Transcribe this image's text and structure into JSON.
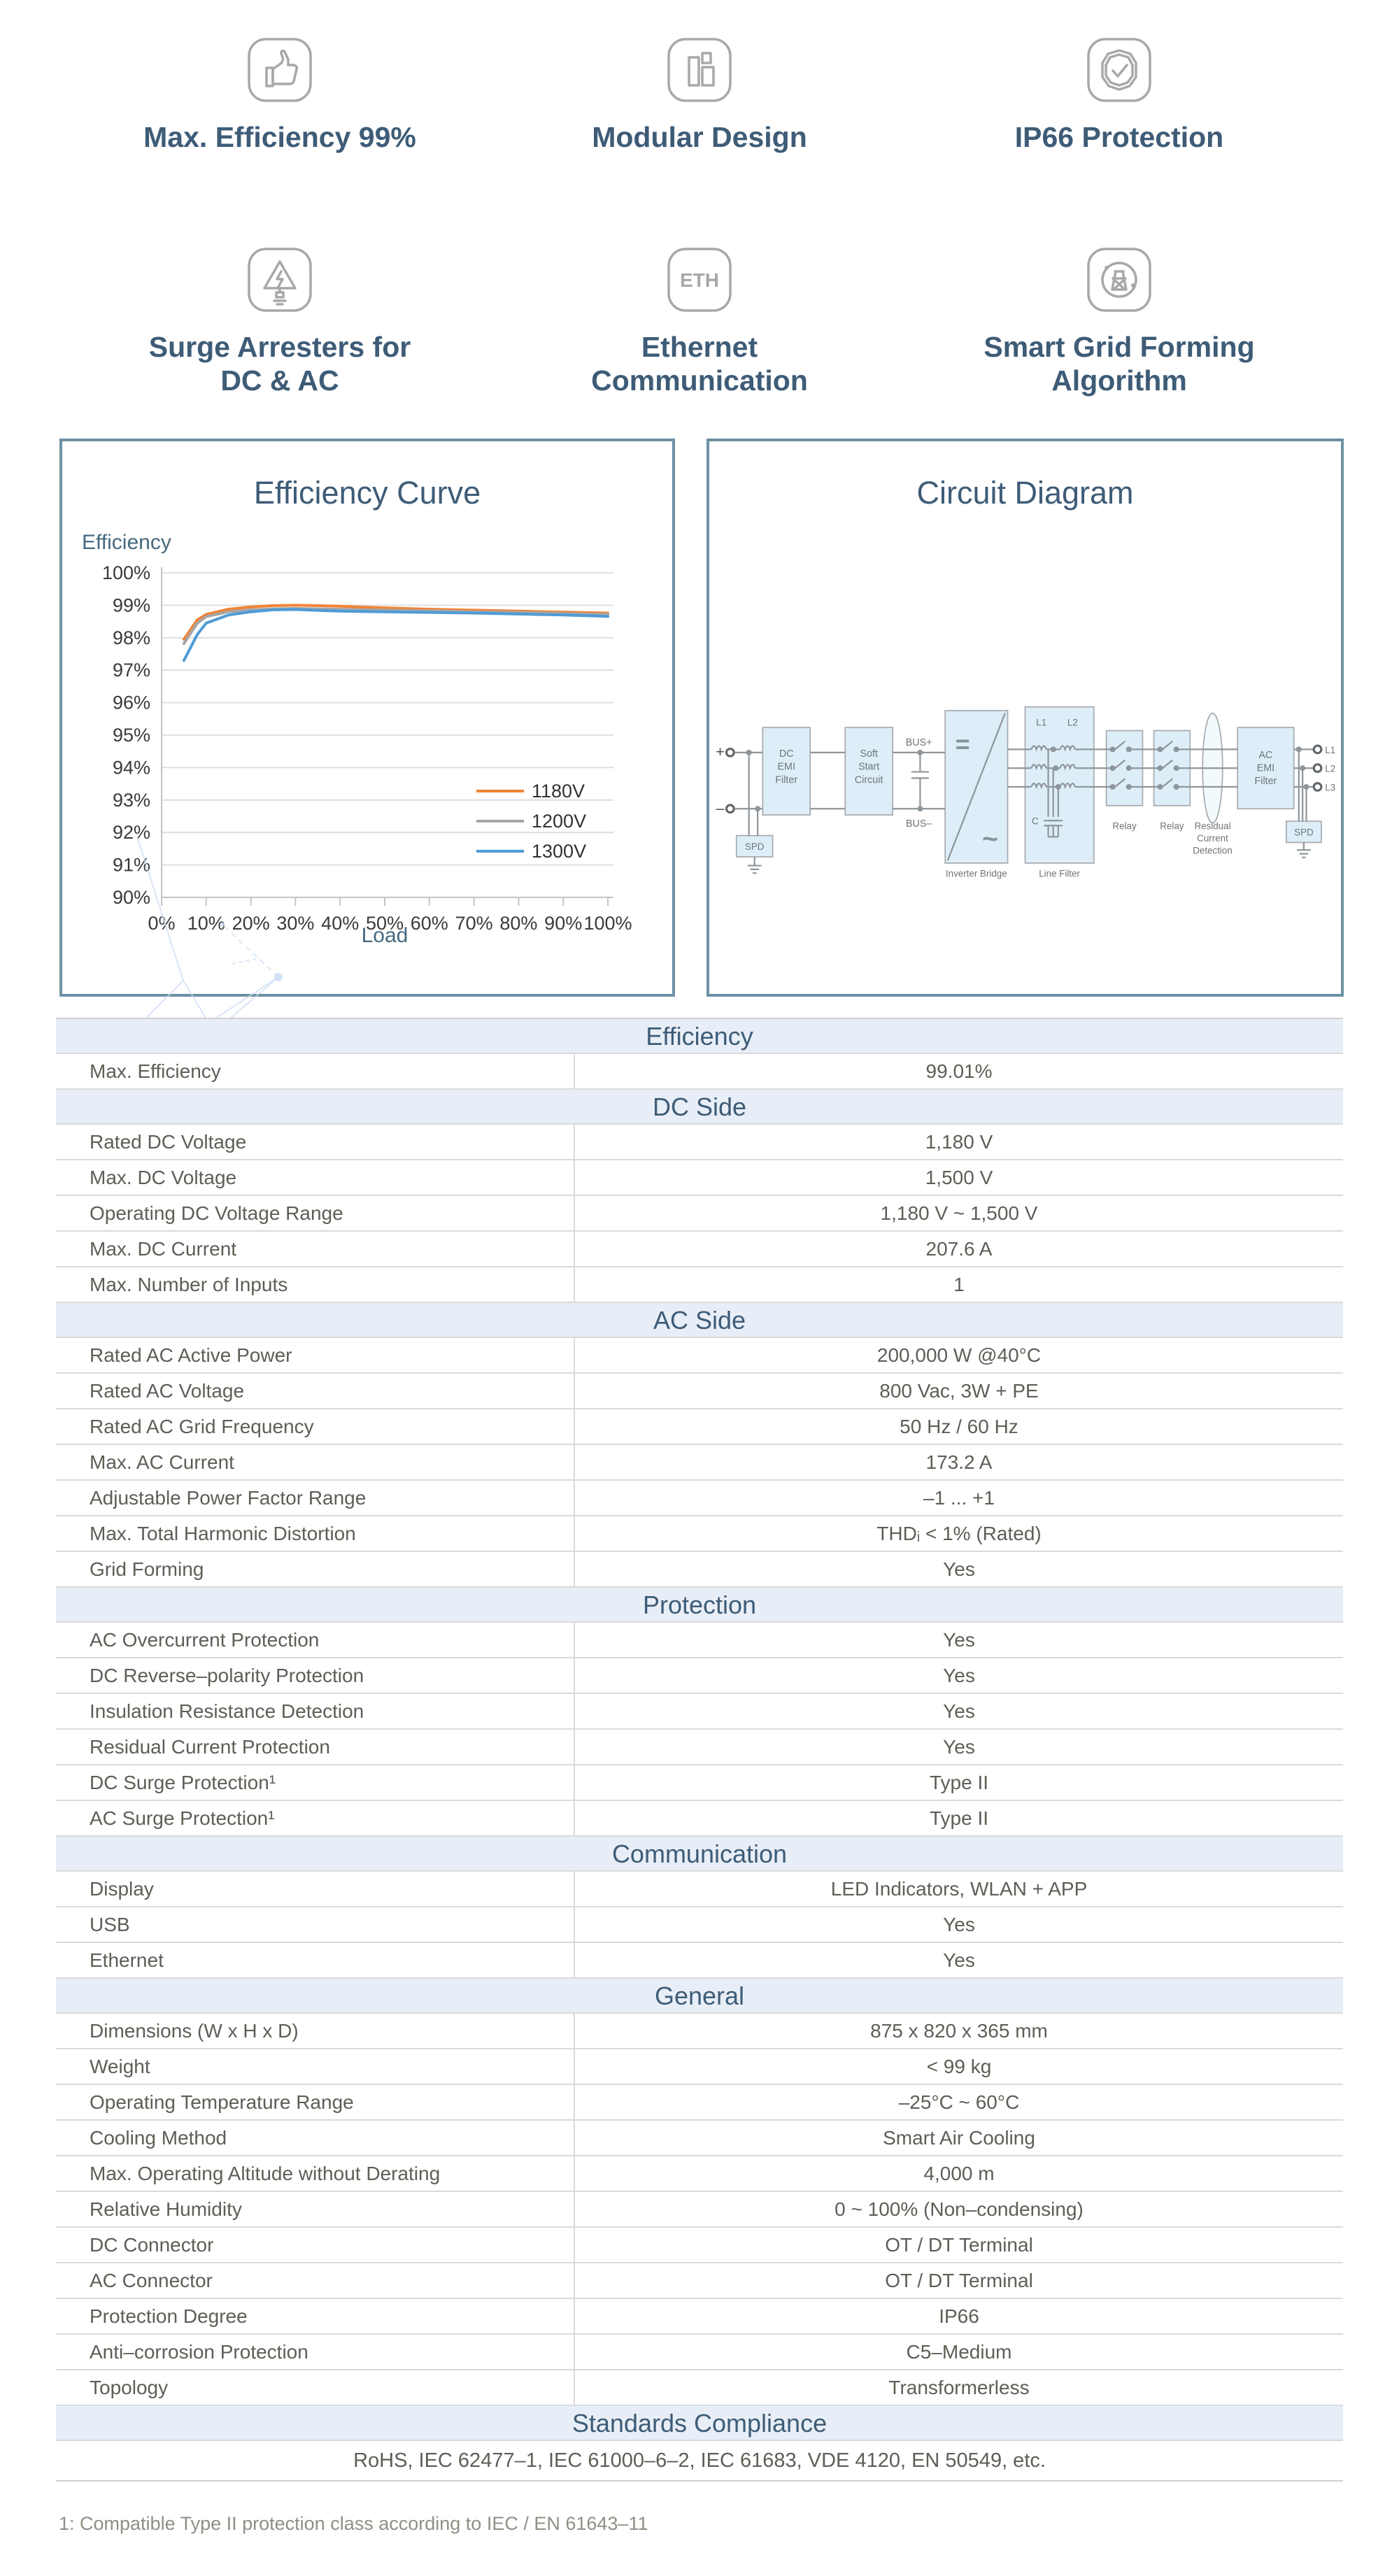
{
  "features": [
    {
      "label": "Max. Efficiency 99%",
      "icon": "thumbs-up-icon"
    },
    {
      "label": "Modular Design",
      "icon": "modules-icon"
    },
    {
      "label": "IP66 Protection",
      "icon": "shield-check-icon"
    },
    {
      "label": "Surge Arresters for\nDC & AC",
      "icon": "surge-arrester-icon"
    },
    {
      "label": "Ethernet\nCommunication",
      "icon": "ethernet-icon",
      "icon_text": "ETH"
    },
    {
      "label": "Smart Grid Forming\nAlgorithm",
      "icon": "grid-forming-icon"
    }
  ],
  "efficiency_panel": {
    "title": "Efficiency Curve",
    "y_axis_title": "Efficiency",
    "x_axis_title": "Load"
  },
  "chart_data": {
    "type": "line",
    "title": "Efficiency Curve",
    "xlabel": "Load",
    "ylabel": "Efficiency",
    "xlim": [
      0,
      100
    ],
    "ylim": [
      90,
      100
    ],
    "xtick_step": 10,
    "ytick_step": 1,
    "x_tick_suffix": "%",
    "y_tick_suffix": "%",
    "grid": "horizontal",
    "legend_position": "right-middle",
    "x": [
      5,
      8,
      10,
      15,
      20,
      25,
      30,
      35,
      40,
      50,
      60,
      70,
      80,
      90,
      100
    ],
    "series": [
      {
        "name": "1180V",
        "color": "#f08436",
        "values": [
          97.95,
          98.55,
          98.72,
          98.88,
          98.95,
          98.99,
          99.0,
          98.99,
          98.97,
          98.92,
          98.88,
          98.85,
          98.82,
          98.79,
          98.76
        ]
      },
      {
        "name": "1200V",
        "color": "#a6a6a6",
        "values": [
          97.82,
          98.45,
          98.65,
          98.8,
          98.86,
          98.89,
          98.9,
          98.89,
          98.88,
          98.85,
          98.83,
          98.8,
          98.78,
          98.75,
          98.72
        ]
      },
      {
        "name": "1300V",
        "color": "#4f9bd6",
        "values": [
          97.3,
          98.1,
          98.45,
          98.7,
          98.8,
          98.86,
          98.87,
          98.84,
          98.82,
          98.8,
          98.78,
          98.76,
          98.73,
          98.7,
          98.66
        ]
      }
    ]
  },
  "circuit_panel": {
    "title": "Circuit Diagram",
    "labels": {
      "plus": "+",
      "minus": "–",
      "spd_dc": "SPD",
      "dc_emi": "DC\nEMI\nFilter",
      "soft_start": "Soft\nStart\nCircuit",
      "bus_plus": "BUS+",
      "bus_minus": "BUS–",
      "eq": "=",
      "tilde": "~",
      "inverter": "Inverter Bridge",
      "l1": "L1",
      "l2": "L2",
      "c": "C",
      "line_filter": "Line Filter",
      "relay1": "Relay",
      "relay2": "Relay",
      "rcd": "Residual\nCurrent\nDetection",
      "ac_emi": "AC\nEMI\nFilter",
      "spd_ac": "SPD",
      "out1": "L1",
      "out2": "L2",
      "out3": "L3"
    }
  },
  "table": {
    "sections": [
      {
        "header": "Efficiency",
        "rows": [
          {
            "label": "Max. Efficiency",
            "value": "99.01%"
          }
        ]
      },
      {
        "header": "DC Side",
        "rows": [
          {
            "label": "Rated DC Voltage",
            "value": "1,180 V"
          },
          {
            "label": "Max. DC Voltage",
            "value": "1,500 V"
          },
          {
            "label": "Operating DC Voltage Range",
            "value": "1,180 V ~ 1,500 V"
          },
          {
            "label": "Max. DC Current",
            "value": "207.6 A"
          },
          {
            "label": "Max. Number of Inputs",
            "value": "1"
          }
        ]
      },
      {
        "header": "AC Side",
        "rows": [
          {
            "label": "Rated AC Active Power",
            "value": "200,000 W @40°C"
          },
          {
            "label": "Rated AC Voltage",
            "value": "800 Vac, 3W + PE"
          },
          {
            "label": "Rated AC Grid Frequency",
            "value": "50 Hz / 60 Hz"
          },
          {
            "label": "Max. AC Current",
            "value": "173.2 A"
          },
          {
            "label": "Adjustable Power Factor Range",
            "value": "–1 ... +1"
          },
          {
            "label": "Max. Total Harmonic Distortion",
            "value": "THDᵢ < 1% (Rated)"
          },
          {
            "label": "Grid Forming",
            "value": "Yes"
          }
        ]
      },
      {
        "header": "Protection",
        "rows": [
          {
            "label": "AC Overcurrent Protection",
            "value": "Yes"
          },
          {
            "label": "DC Reverse–polarity Protection",
            "value": "Yes"
          },
          {
            "label": "Insulation Resistance Detection",
            "value": "Yes"
          },
          {
            "label": "Residual Current Protection",
            "value": "Yes"
          },
          {
            "label": "DC Surge Protection¹",
            "value": "Type II"
          },
          {
            "label": "AC Surge Protection¹",
            "value": "Type II"
          }
        ]
      },
      {
        "header": "Communication",
        "rows": [
          {
            "label": "Display",
            "value": "LED Indicators, WLAN + APP"
          },
          {
            "label": "USB",
            "value": "Yes"
          },
          {
            "label": "Ethernet",
            "value": "Yes"
          }
        ]
      },
      {
        "header": "General",
        "rows": [
          {
            "label": "Dimensions (W x H x D)",
            "value": "875 x 820 x 365 mm"
          },
          {
            "label": "Weight",
            "value": "< 99 kg"
          },
          {
            "label": "Operating Temperature Range",
            "value": "–25°C ~ 60°C"
          },
          {
            "label": "Cooling Method",
            "value": "Smart Air Cooling"
          },
          {
            "label": "Max. Operating Altitude without Derating",
            "value": "4,000 m"
          },
          {
            "label": "Relative Humidity",
            "value": "0 ~ 100% (Non–condensing)"
          },
          {
            "label": "DC Connector",
            "value": "OT / DT Terminal"
          },
          {
            "label": "AC Connector",
            "value": "OT / DT Terminal"
          },
          {
            "label": "Protection Degree",
            "value": "IP66"
          },
          {
            "label": "Anti–corrosion Protection",
            "value": "C5–Medium"
          },
          {
            "label": "Topology",
            "value": "Transformerless"
          }
        ]
      },
      {
        "header": "Standards Compliance",
        "rows": [
          {
            "full": true,
            "value": "RoHS, IEC 62477–1, IEC 61000–6–2, IEC 61683, VDE 4120, EN 50549, etc."
          }
        ]
      }
    ]
  },
  "footnote": "1: Compatible Type II protection class according to IEC / EN 61643–11",
  "colors": {
    "accent_text": "#3e5c77",
    "section_header_bg": "#e8eef7",
    "panel_border": "#6d90a3",
    "series_1180": "#f08436",
    "series_1200": "#a6a6a6",
    "series_1300": "#4f9bd6"
  }
}
